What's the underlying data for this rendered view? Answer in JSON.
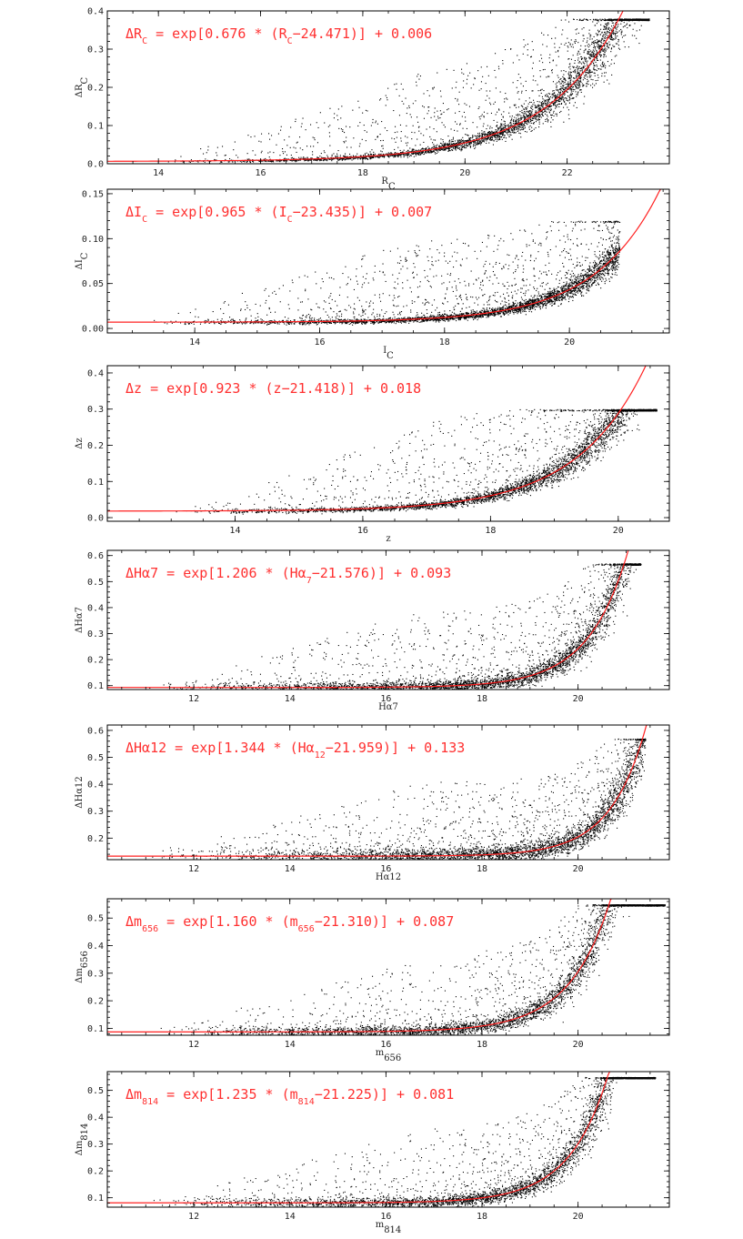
{
  "figure": {
    "panels_count": 7
  },
  "chart_data": [
    {
      "type": "scatter",
      "xlabel": "R_C",
      "ylabel": "ΔR_C",
      "xlim": [
        13,
        24
      ],
      "ylim": [
        0,
        0.4
      ],
      "xticks": [
        14,
        16,
        18,
        20,
        22
      ],
      "yticks": [
        0.0,
        0.1,
        0.2,
        0.3,
        0.4
      ],
      "ytick_labels": [
        "0.0",
        "0.1",
        "0.2",
        "0.3",
        "0.4"
      ],
      "equation": {
        "lhs": "ΔR",
        "lhs_sub": "C",
        "text1": " = exp[0.676 * (R",
        "text1_sub": "C",
        "text2": "−24.471)] + 0.006"
      },
      "fit": {
        "a": 0.676,
        "m0": 24.471,
        "c": 0.006
      },
      "scatter": {
        "xmin": 14.0,
        "xmax": 23.6,
        "ytop": 0.38,
        "rand_lo": 0.3,
        "rand_hi": 1.0
      }
    },
    {
      "type": "scatter",
      "xlabel": "I_C",
      "ylabel": "ΔI_C",
      "xlim": [
        12.6,
        21.6
      ],
      "ylim": [
        -0.005,
        0.155
      ],
      "xticks": [
        14,
        16,
        18,
        20
      ],
      "yticks": [
        0.0,
        0.05,
        0.1,
        0.15
      ],
      "ytick_labels": [
        "0.00",
        "0.05",
        "0.10",
        "0.15"
      ],
      "equation": {
        "lhs": "ΔI",
        "lhs_sub": "C",
        "text1": " = exp[0.965 * (I",
        "text1_sub": "C",
        "text2": "−23.435)] + 0.007"
      },
      "fit": {
        "a": 0.965,
        "m0": 23.435,
        "c": 0.007
      },
      "scatter": {
        "xmin": 13.2,
        "xmax": 20.8,
        "ytop": 0.12,
        "rand_lo": 0.3,
        "rand_hi": 1.0
      }
    },
    {
      "type": "scatter",
      "xlabel": "z",
      "ylabel": "Δz",
      "xlim": [
        12.0,
        20.8
      ],
      "ylim": [
        -0.01,
        0.42
      ],
      "xticks": [
        14,
        16,
        18,
        20
      ],
      "yticks": [
        0.0,
        0.1,
        0.2,
        0.3,
        0.4
      ],
      "ytick_labels": [
        "0.0",
        "0.1",
        "0.2",
        "0.3",
        "0.4"
      ],
      "equation": {
        "lhs": "Δz",
        "lhs_sub": "",
        "text1": " = exp[0.923 * (z",
        "text1_sub": "",
        "text2": "−21.418)] + 0.018"
      },
      "fit": {
        "a": 0.923,
        "m0": 21.418,
        "c": 0.018
      },
      "scatter": {
        "xmin": 13.0,
        "xmax": 20.6,
        "ytop": 0.3,
        "rand_lo": 0.3,
        "rand_hi": 1.0
      }
    },
    {
      "type": "scatter",
      "xlabel": "Hα7",
      "ylabel": "ΔHα7",
      "xlim": [
        10.2,
        21.9
      ],
      "ylim": [
        0.085,
        0.62
      ],
      "xticks": [
        12,
        14,
        16,
        18,
        20
      ],
      "yticks": [
        0.1,
        0.2,
        0.3,
        0.4,
        0.5,
        0.6
      ],
      "ytick_labels": [
        "0.1",
        "0.2",
        "0.3",
        "0.4",
        "0.5",
        "0.6"
      ],
      "equation": {
        "lhs": "ΔHα7",
        "lhs_sub": "",
        "text1": " = exp[1.206 * (Hα",
        "text1_sub": "7",
        "text2": "−21.576)] + 0.093"
      },
      "fit": {
        "a": 1.206,
        "m0": 21.576,
        "c": 0.093
      },
      "scatter": {
        "xmin": 11.0,
        "xmax": 21.3,
        "ytop": 0.57,
        "rand_lo": 0.3,
        "rand_hi": 1.0
      }
    },
    {
      "type": "scatter",
      "xlabel": "Hα12",
      "ylabel": "ΔHα12",
      "xlim": [
        10.2,
        21.9
      ],
      "ylim": [
        0.12,
        0.62
      ],
      "xticks": [
        12,
        14,
        16,
        18,
        20
      ],
      "yticks": [
        0.2,
        0.3,
        0.4,
        0.5,
        0.6
      ],
      "ytick_labels": [
        "0.2",
        "0.3",
        "0.4",
        "0.5",
        "0.6"
      ],
      "equation": {
        "lhs": "ΔHα12",
        "lhs_sub": "",
        "text1": " = exp[1.344 * (Hα",
        "text1_sub": "12",
        "text2": "−21.959)] + 0.133"
      },
      "fit": {
        "a": 1.344,
        "m0": 21.959,
        "c": 0.133
      },
      "scatter": {
        "xmin": 11.0,
        "xmax": 21.4,
        "ytop": 0.57,
        "rand_lo": 0.3,
        "rand_hi": 1.0
      }
    },
    {
      "type": "scatter",
      "xlabel": "m_656",
      "ylabel": "Δm_656",
      "xlim": [
        10.2,
        21.9
      ],
      "ylim": [
        0.075,
        0.57
      ],
      "xticks": [
        12,
        14,
        16,
        18,
        20
      ],
      "yticks": [
        0.1,
        0.2,
        0.3,
        0.4,
        0.5
      ],
      "ytick_labels": [
        "0.1",
        "0.2",
        "0.3",
        "0.4",
        "0.5"
      ],
      "equation": {
        "lhs": "Δm",
        "lhs_sub": "656",
        "text1": " = exp[1.160 * (m",
        "text1_sub": "656",
        "text2": "−21.310)] + 0.087"
      },
      "fit": {
        "a": 1.16,
        "m0": 21.31,
        "c": 0.087
      },
      "scatter": {
        "xmin": 11.0,
        "xmax": 21.8,
        "ytop": 0.55,
        "rand_lo": 0.3,
        "rand_hi": 1.0
      }
    },
    {
      "type": "scatter",
      "xlabel": "m_814",
      "ylabel": "Δm_814",
      "xlim": [
        10.2,
        21.9
      ],
      "ylim": [
        0.065,
        0.57
      ],
      "xticks": [
        12,
        14,
        16,
        18,
        20
      ],
      "yticks": [
        0.1,
        0.2,
        0.3,
        0.4,
        0.5
      ],
      "ytick_labels": [
        "0.1",
        "0.2",
        "0.3",
        "0.4",
        "0.5"
      ],
      "equation": {
        "lhs": "Δm",
        "lhs_sub": "814",
        "text1": " = exp[1.235 * (m",
        "text1_sub": "814",
        "text2": "−21.225)] + 0.081"
      },
      "fit": {
        "a": 1.235,
        "m0": 21.225,
        "c": 0.081
      },
      "scatter": {
        "xmin": 11.0,
        "xmax": 21.6,
        "ytop": 0.55,
        "rand_lo": 0.3,
        "rand_hi": 1.0
      }
    }
  ]
}
